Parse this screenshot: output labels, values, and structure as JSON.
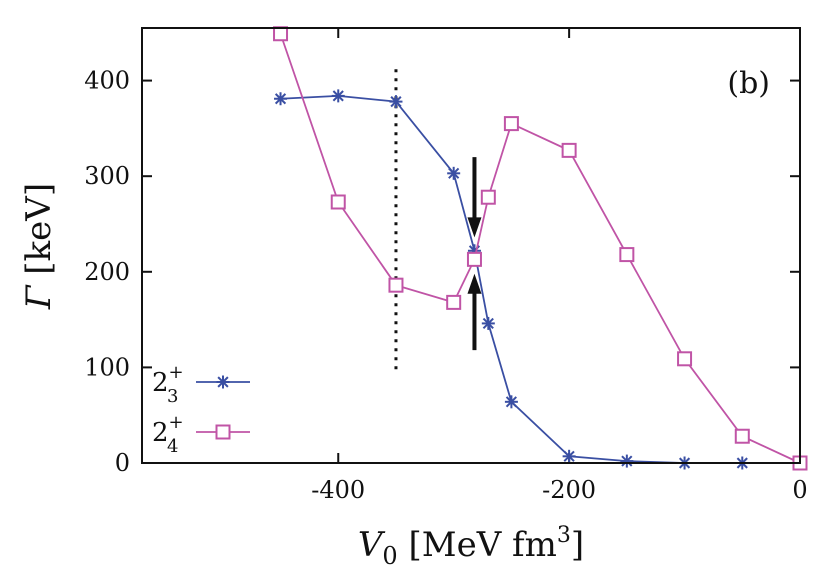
{
  "chart_data": {
    "type": "line",
    "panel_label": "(b)",
    "xlabel": {
      "symbol": "V",
      "subscript": "0",
      "unit": " [MeV fm",
      "unit_sup": "3",
      "unit_close": "]"
    },
    "ylabel": {
      "symbol": "Γ",
      "unit": " [keV]"
    },
    "xlim": [
      -570,
      0
    ],
    "ylim": [
      0,
      455
    ],
    "xticks": [
      -400,
      -200,
      0
    ],
    "xtick_labels": [
      "-400",
      "-200",
      "0"
    ],
    "yticks": [
      0,
      100,
      200,
      300,
      400
    ],
    "ytick_labels": [
      "0",
      "100",
      "200",
      "300",
      "400"
    ],
    "legend_position": "bottom-left",
    "series": [
      {
        "name": {
          "base": "2",
          "sup": "+",
          "sub": "3"
        },
        "color": "#3a4fa3",
        "marker": "asterisk",
        "x": [
          -450,
          -400,
          -350,
          -300,
          -282,
          -270,
          -250,
          -200,
          -150,
          -100,
          -50,
          0
        ],
        "y": [
          381,
          384,
          378,
          303,
          222,
          146,
          64,
          7,
          2,
          0,
          0,
          0
        ]
      },
      {
        "name": {
          "base": "2",
          "sup": "+",
          "sub": "4"
        },
        "color": "#c054a6",
        "marker": "square",
        "x": [
          -450,
          -400,
          -350,
          -300,
          -282,
          -270,
          -250,
          -200,
          -150,
          -100,
          -50,
          0
        ],
        "y": [
          449,
          273,
          186,
          168,
          213,
          278,
          355,
          327,
          218,
          109,
          28,
          0
        ]
      }
    ],
    "annotations": {
      "vertical_dotted_line": {
        "x": -350,
        "y_range": [
          98,
          418
        ]
      },
      "arrows": [
        {
          "x": -282,
          "y_from": 320,
          "y_to": 236,
          "direction": "down"
        },
        {
          "x": -282,
          "y_from": 118,
          "y_to": 198,
          "direction": "up"
        }
      ]
    }
  }
}
